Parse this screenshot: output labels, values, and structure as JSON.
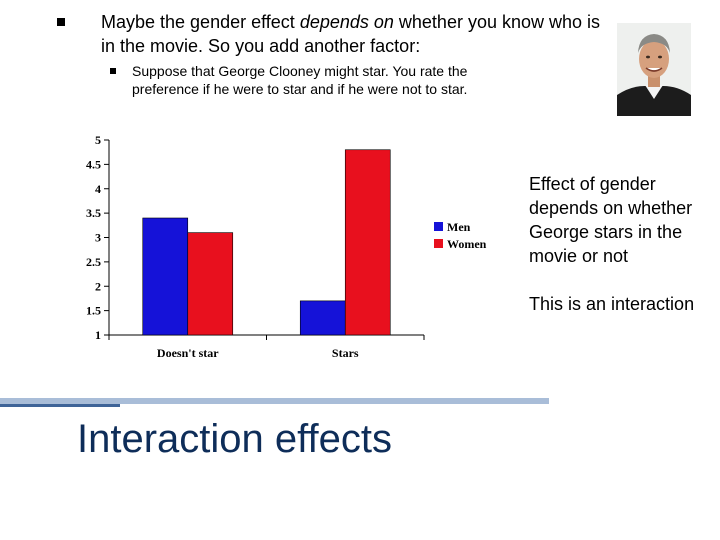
{
  "slide": {
    "bullet1": {
      "pre": "Maybe the gender effect ",
      "emph": "depends on",
      "post": " whether you know who is in the movie.  So you add another factor:"
    },
    "bullet2": "Suppose that George Clooney might star. You rate the preference if he were to star and if he were not to star.",
    "side_text_1": "Effect of gender depends on whether George stars in the movie or not",
    "side_text_2": "This is an interaction",
    "title": "Interaction effects"
  },
  "colors": {
    "men": "#1512d8",
    "women": "#e8101e",
    "title": "#0e2d59",
    "divider": "#a9bdd8"
  },
  "chart_data": {
    "type": "bar",
    "categories": [
      "Doesn't star",
      "Stars"
    ],
    "series": [
      {
        "name": "Men",
        "values": [
          3.4,
          1.7
        ]
      },
      {
        "name": "Women",
        "values": [
          3.1,
          4.8
        ]
      }
    ],
    "ylim": [
      1,
      5
    ],
    "yticks": [
      "1",
      "1.5",
      "2",
      "2.5",
      "3",
      "3.5",
      "4",
      "4.5",
      "5"
    ],
    "xlabel": "",
    "ylabel": "",
    "legend": "right",
    "grid": false
  }
}
